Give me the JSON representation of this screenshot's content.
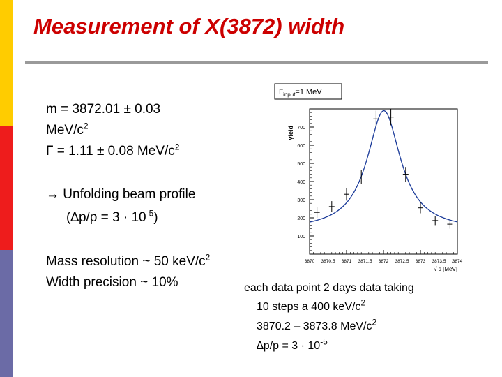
{
  "title": "Measurement of X(3872) width",
  "left_text": {
    "mass_line1": "m  =   3872.01  ±  0.03",
    "mass_line2": "MeV/c",
    "mass_line2_sup": "2",
    "width_line": "Γ   =  1.11   ±  0.08 MeV/c",
    "width_line_sup": "2",
    "unfold_line": "→  Unfolding beam profile",
    "dp_open": "(∆p/p = 3 · 10",
    "dp_sup": "-5",
    "dp_close": ")",
    "resolution": "Mass resolution ~ 50 keV/c",
    "resolution_sup": "2",
    "precision": "Width precision ~ 10%"
  },
  "notes": {
    "note1": "each data point 2 days data taking",
    "note2": "10 steps a 400 keV/c",
    "note2_sup": "2",
    "note3": "3870.2 – 3873.8 MeV/c",
    "note3_sup": "2",
    "note4": "∆p/p = 3 · 10",
    "note4_sup": "-5"
  },
  "colors": {
    "title": "#cc0000",
    "bar_yellow": "#ffcc00",
    "bar_red": "#ee1c1c",
    "bar_blue": "#6b6ba6",
    "curve": "#1a3a99",
    "rule": "#9a9a9a"
  },
  "chart_data": {
    "type": "scatter",
    "legend": "Γinput=1 MeV",
    "legend_main": "Γ",
    "legend_sub": "input",
    "legend_rest": "=1 MeV",
    "ylabel": "yield",
    "xlabel": "√ s [MeV]",
    "xlim": [
      3870,
      3874
    ],
    "ylim": [
      0,
      800
    ],
    "x_ticks": [
      "3870",
      "3870.5",
      "3871",
      "3871.5",
      "3872",
      "3872.5",
      "3873",
      "3873.5",
      "3874"
    ],
    "y_ticks": [
      "100",
      "200",
      "300",
      "400",
      "500",
      "600",
      "700"
    ],
    "points": [
      {
        "x": 3870.2,
        "y": 230,
        "err": 30
      },
      {
        "x": 3870.6,
        "y": 262,
        "err": 30
      },
      {
        "x": 3871.0,
        "y": 330,
        "err": 35
      },
      {
        "x": 3871.4,
        "y": 425,
        "err": 40
      },
      {
        "x": 3871.8,
        "y": 745,
        "err": 45
      },
      {
        "x": 3872.2,
        "y": 755,
        "err": 45
      },
      {
        "x": 3872.6,
        "y": 440,
        "err": 40
      },
      {
        "x": 3873.0,
        "y": 255,
        "err": 30
      },
      {
        "x": 3873.4,
        "y": 185,
        "err": 25
      },
      {
        "x": 3873.8,
        "y": 165,
        "err": 25
      }
    ],
    "fit": {
      "peak_x": 3872.01,
      "peak_y": 790,
      "gamma": 1.11,
      "baseline": 130
    }
  }
}
